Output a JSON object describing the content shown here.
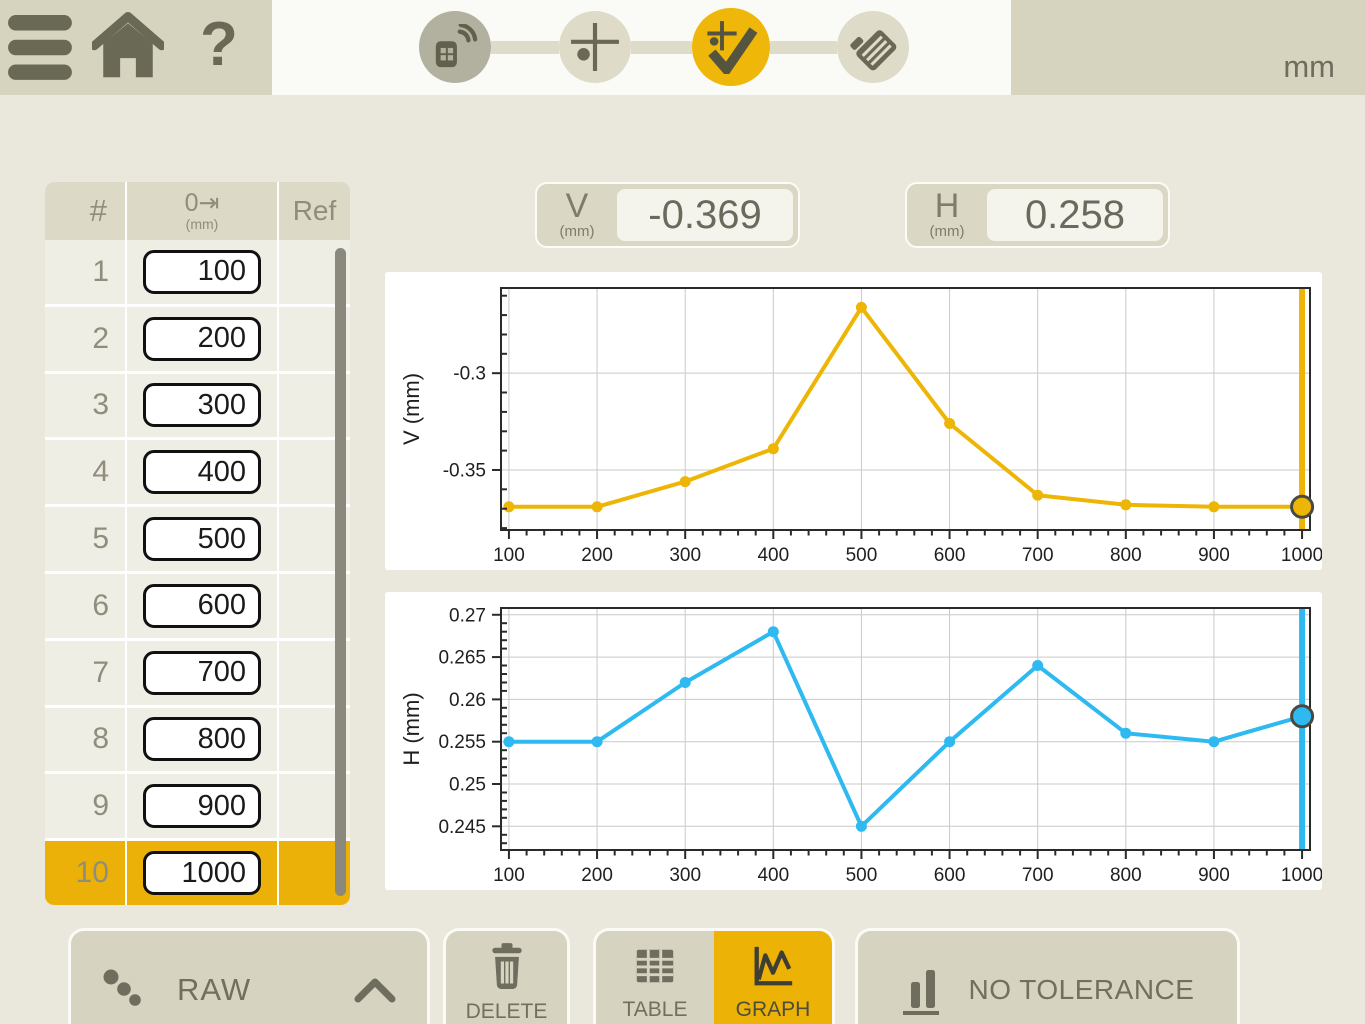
{
  "topbar": {
    "unit_label": "mm",
    "help_label": "?",
    "workflow_steps": [
      {
        "name": "device-connection",
        "state": "done"
      },
      {
        "name": "measure-points",
        "state": "pending"
      },
      {
        "name": "register-measurement",
        "state": "active"
      },
      {
        "name": "report",
        "state": "pending"
      }
    ]
  },
  "icons": {
    "hamburger-icon": "three-bars",
    "home-icon": "house",
    "help-icon": "?",
    "device-icon": "measuring-unit-with-wireless",
    "measure-points-icon": "crosshair-with-dot",
    "register-icon": "crosshair-with-checkmark",
    "report-icon": "tilted-document",
    "raw-icon": "three-dots-diagonal",
    "chevron-up-icon": "^",
    "delete-icon": "trash-can",
    "table-icon": "grid",
    "graph-icon": "line-chart",
    "tolerance-icon": "two-bars-underlined"
  },
  "colors": {
    "gold": "#ECB206",
    "gold_line": "#EDB505",
    "blue_line": "#2EB9F1",
    "beige_block": "#D6D3BF",
    "row_bg": "#EFEEE4",
    "icon_dark": "#6A6955"
  },
  "readouts": {
    "v": {
      "label": "V",
      "unit": "(mm)",
      "value": "-0.369"
    },
    "h": {
      "label": "H",
      "unit": "(mm)",
      "value": "0.258"
    }
  },
  "table": {
    "headers": {
      "index": "#",
      "distance": "0⇥",
      "distance_unit": "(mm)",
      "ref": "Ref"
    },
    "rows": [
      {
        "index": "1",
        "value": "100",
        "ref": "",
        "selected": false
      },
      {
        "index": "2",
        "value": "200",
        "ref": "",
        "selected": false
      },
      {
        "index": "3",
        "value": "300",
        "ref": "",
        "selected": false
      },
      {
        "index": "4",
        "value": "400",
        "ref": "",
        "selected": false
      },
      {
        "index": "5",
        "value": "500",
        "ref": "",
        "selected": false
      },
      {
        "index": "6",
        "value": "600",
        "ref": "",
        "selected": false
      },
      {
        "index": "7",
        "value": "700",
        "ref": "",
        "selected": false
      },
      {
        "index": "8",
        "value": "800",
        "ref": "",
        "selected": false
      },
      {
        "index": "9",
        "value": "900",
        "ref": "",
        "selected": false
      },
      {
        "index": "10",
        "value": "1000",
        "ref": "",
        "selected": true
      }
    ]
  },
  "chart_data": [
    {
      "type": "line",
      "ylabel": "V (mm)",
      "x": [
        100,
        200,
        300,
        400,
        500,
        600,
        700,
        800,
        900,
        1000
      ],
      "values": [
        -0.369,
        -0.369,
        -0.356,
        -0.339,
        -0.266,
        -0.326,
        -0.363,
        -0.368,
        -0.369,
        -0.369
      ],
      "xlim": [
        91,
        1009
      ],
      "ylim": [
        -0.381,
        -0.256
      ],
      "xticks": [
        100,
        200,
        300,
        400,
        500,
        600,
        700,
        800,
        900,
        1000
      ],
      "x_minor_step": 20,
      "yticks": [
        -0.3,
        -0.35
      ],
      "ytick_labels": [
        "-0.3",
        "-0.35"
      ],
      "y_minor_step": 0.01,
      "grid": true,
      "legend": "none",
      "cursor_x": 1000,
      "color": "#EDB505"
    },
    {
      "type": "line",
      "ylabel": "H (mm)",
      "x": [
        100,
        200,
        300,
        400,
        500,
        600,
        700,
        800,
        900,
        1000
      ],
      "values": [
        0.255,
        0.255,
        0.262,
        0.268,
        0.245,
        0.255,
        0.264,
        0.256,
        0.255,
        0.258
      ],
      "xlim": [
        91,
        1009
      ],
      "ylim": [
        0.2422,
        0.2708
      ],
      "xticks": [
        100,
        200,
        300,
        400,
        500,
        600,
        700,
        800,
        900,
        1000
      ],
      "x_minor_step": 20,
      "yticks": [
        0.27,
        0.265,
        0.26,
        0.255,
        0.25,
        0.245
      ],
      "ytick_labels": [
        "0.27",
        "0.265",
        "0.26",
        "0.255",
        "0.25",
        "0.245"
      ],
      "y_minor_step": 0.001,
      "grid": true,
      "legend": "none",
      "cursor_x": 1000,
      "color": "#2EB9F1"
    }
  ],
  "toolbar": {
    "raw_label": "RAW",
    "delete_label": "DELETE",
    "table_label": "TABLE",
    "graph_label": "GRAPH",
    "tolerance_label": "NO TOLERANCE",
    "active_view": "GRAPH"
  }
}
